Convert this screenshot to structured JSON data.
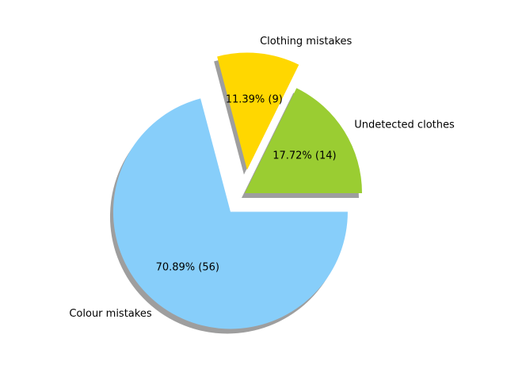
{
  "chart_data": {
    "type": "pie",
    "title": "",
    "start_angle_deg": 0,
    "direction": "counterclockwise",
    "shadow": true,
    "slices": [
      {
        "label": "Undetected clothes",
        "value": 14,
        "percent_label": "17.72%  (14)",
        "color": "#9ACD32",
        "explode": 0.0
      },
      {
        "label": "Clothing mistakes",
        "value": 9,
        "percent_label": "11.39%  (9)",
        "color": "#FFD700",
        "explode": 0.2
      },
      {
        "label": "Colour mistakes",
        "value": 56,
        "percent_label": "70.89%  (56)",
        "color": "#87CEFA",
        "explode": 0.2
      }
    ]
  }
}
